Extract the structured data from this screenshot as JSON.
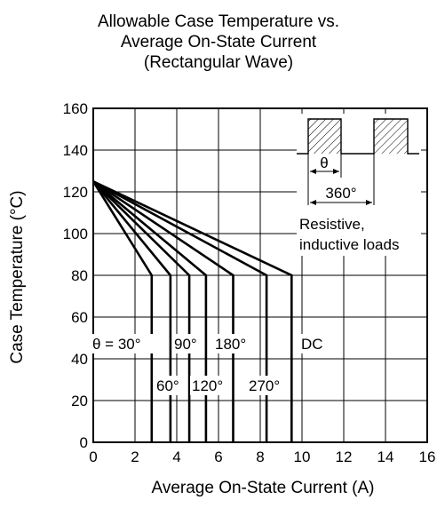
{
  "title_lines": [
    "Allowable Case Temperature vs.",
    "Average On-State Current",
    "(Rectangular Wave)"
  ],
  "chart_data": {
    "type": "line",
    "title": "Allowable Case Temperature vs. Average On-State Current (Rectangular Wave)",
    "xlabel": "Average On-State Current  (A)",
    "ylabel": "Case Temperature  (°C)",
    "xlim": [
      0,
      16
    ],
    "ylim": [
      0,
      160
    ],
    "x_ticks": [
      "0",
      "2",
      "4",
      "6",
      "8",
      "10",
      "12",
      "14",
      "16"
    ],
    "y_ticks": [
      "0",
      "20",
      "40",
      "60",
      "80",
      "100",
      "120",
      "140",
      "160"
    ],
    "grid": true,
    "series": [
      {
        "name": "θ = 30°",
        "points": [
          [
            0,
            125
          ],
          [
            2.8,
            80
          ],
          [
            2.8,
            0
          ]
        ]
      },
      {
        "name": "60°",
        "points": [
          [
            0,
            125
          ],
          [
            3.7,
            80
          ],
          [
            3.7,
            0
          ]
        ]
      },
      {
        "name": "90°",
        "points": [
          [
            0,
            125
          ],
          [
            4.6,
            80
          ],
          [
            4.6,
            0
          ]
        ]
      },
      {
        "name": "120°",
        "points": [
          [
            0,
            125
          ],
          [
            5.4,
            80
          ],
          [
            5.4,
            0
          ]
        ]
      },
      {
        "name": "180°",
        "points": [
          [
            0,
            125
          ],
          [
            6.7,
            80
          ],
          [
            6.7,
            0
          ]
        ]
      },
      {
        "name": "270°",
        "points": [
          [
            0,
            125
          ],
          [
            8.3,
            80
          ],
          [
            8.3,
            0
          ]
        ]
      },
      {
        "name": "DC",
        "points": [
          [
            0,
            125
          ],
          [
            9.5,
            80
          ],
          [
            9.5,
            0
          ]
        ]
      }
    ],
    "annotations": {
      "theta": "θ",
      "period": "360°",
      "load_line1": "Resistive,",
      "load_line2": "inductive loads",
      "curve_labels_row1": [
        "θ = 30°",
        "90°",
        "180°",
        "DC"
      ],
      "curve_labels_row2": [
        "60°",
        "120°",
        "270°"
      ]
    }
  }
}
